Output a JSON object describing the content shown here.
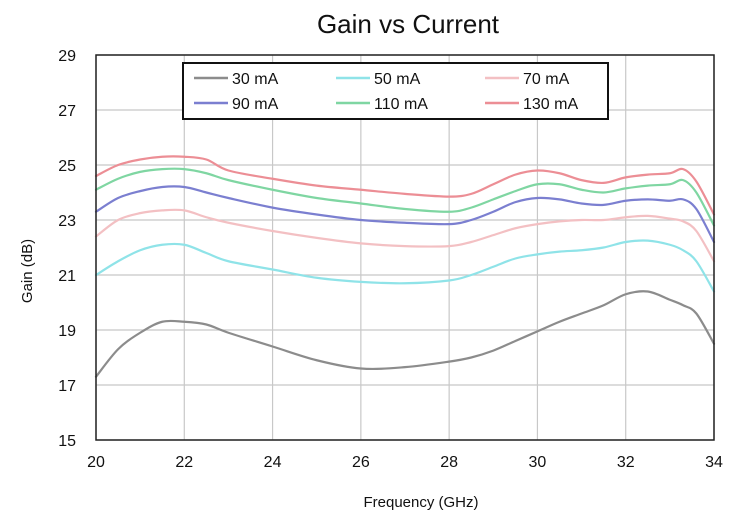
{
  "chart_data": {
    "type": "line",
    "title": "Gain vs Current",
    "xlabel": "Frequency (GHz)",
    "ylabel": "Gain (dB)",
    "xlim": [
      20,
      34
    ],
    "ylim": [
      15,
      29
    ],
    "xticks": [
      20,
      22,
      24,
      26,
      28,
      30,
      32,
      34
    ],
    "yticks": [
      15,
      17,
      19,
      21,
      23,
      25,
      27,
      29
    ],
    "grid": true,
    "legend_position": "top-center",
    "x": [
      20,
      20.5,
      21,
      21.5,
      22,
      22.5,
      23,
      24,
      25,
      26,
      27,
      28,
      28.5,
      29,
      29.5,
      30,
      30.5,
      31,
      31.5,
      32,
      32.5,
      33,
      33.3,
      33.6,
      34
    ],
    "series": [
      {
        "name": "30 mA",
        "color": "#8c8c8c",
        "values": [
          17.3,
          18.3,
          18.9,
          19.3,
          19.3,
          19.2,
          18.9,
          18.4,
          17.9,
          17.6,
          17.65,
          17.85,
          18.0,
          18.25,
          18.6,
          18.95,
          19.3,
          19.6,
          19.9,
          20.3,
          20.4,
          20.1,
          19.9,
          19.6,
          18.5
        ]
      },
      {
        "name": "50 mA",
        "color": "#8fe3e8",
        "values": [
          21.0,
          21.5,
          21.9,
          22.1,
          22.1,
          21.8,
          21.5,
          21.2,
          20.9,
          20.75,
          20.7,
          20.8,
          21.0,
          21.3,
          21.6,
          21.75,
          21.85,
          21.9,
          22.0,
          22.2,
          22.25,
          22.1,
          21.9,
          21.5,
          20.4
        ]
      },
      {
        "name": "70 mA",
        "color": "#f3c0c3",
        "values": [
          22.4,
          23.0,
          23.25,
          23.35,
          23.35,
          23.1,
          22.9,
          22.6,
          22.35,
          22.15,
          22.05,
          22.05,
          22.2,
          22.45,
          22.7,
          22.85,
          22.95,
          23.0,
          23.0,
          23.1,
          23.15,
          23.05,
          22.95,
          22.6,
          21.5
        ]
      },
      {
        "name": "90 mA",
        "color": "#7b7fd0",
        "values": [
          23.3,
          23.8,
          24.05,
          24.2,
          24.2,
          24.0,
          23.8,
          23.45,
          23.2,
          23.0,
          22.9,
          22.85,
          23.0,
          23.3,
          23.65,
          23.8,
          23.75,
          23.6,
          23.55,
          23.7,
          23.75,
          23.7,
          23.75,
          23.4,
          22.2
        ]
      },
      {
        "name": "110 mA",
        "color": "#7fd6a2",
        "values": [
          24.1,
          24.5,
          24.75,
          24.85,
          24.85,
          24.7,
          24.45,
          24.1,
          23.8,
          23.6,
          23.4,
          23.3,
          23.45,
          23.75,
          24.05,
          24.3,
          24.3,
          24.1,
          24.0,
          24.15,
          24.25,
          24.3,
          24.45,
          24.0,
          22.8
        ]
      },
      {
        "name": "130 mA",
        "color": "#ec8e95",
        "values": [
          24.6,
          25.0,
          25.2,
          25.3,
          25.3,
          25.2,
          24.8,
          24.5,
          24.25,
          24.1,
          23.95,
          23.85,
          23.95,
          24.3,
          24.65,
          24.8,
          24.7,
          24.45,
          24.35,
          24.55,
          24.65,
          24.7,
          24.85,
          24.4,
          23.2
        ]
      }
    ]
  }
}
